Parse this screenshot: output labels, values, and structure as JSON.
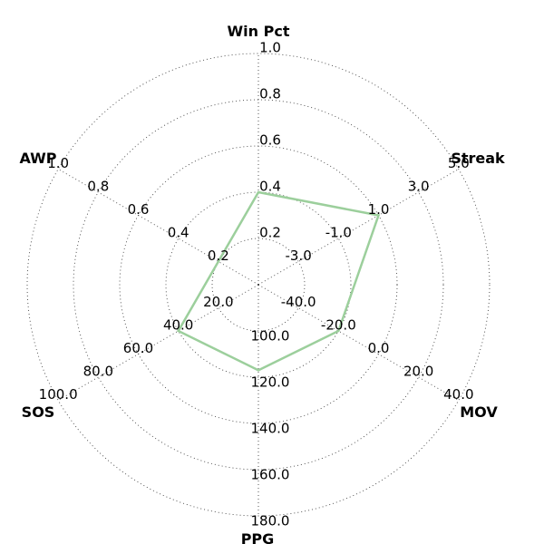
{
  "chart_data": {
    "type": "radar",
    "axes": [
      {
        "name": "Win Pct",
        "ticks": [
          "0.2",
          "0.4",
          "0.6",
          "0.8",
          "1.0"
        ],
        "value": 0.4
      },
      {
        "name": "Streak",
        "ticks": [
          "-3.0",
          "-1.0",
          "1.0",
          "3.0",
          "5.0"
        ],
        "value": 1.0
      },
      {
        "name": "MOV",
        "ticks": [
          "-40.0",
          "-20.0",
          "0.0",
          "20.0",
          "40.0"
        ],
        "value": -20.0
      },
      {
        "name": "PPG",
        "ticks": [
          "100.0",
          "120.0",
          "140.0",
          "160.0",
          "180.0"
        ],
        "value": 117.0
      },
      {
        "name": "SOS",
        "ticks": [
          "20.0",
          "40.0",
          "60.0",
          "80.0",
          "100.0"
        ],
        "value": 40.0
      },
      {
        "name": "AWP",
        "ticks": [
          "0.2",
          "0.4",
          "0.6",
          "0.8",
          "1.0"
        ],
        "value": 0.2
      }
    ],
    "series": [
      {
        "color": "#9ccf9c"
      }
    ],
    "grid": true,
    "ring_levels": 5
  }
}
